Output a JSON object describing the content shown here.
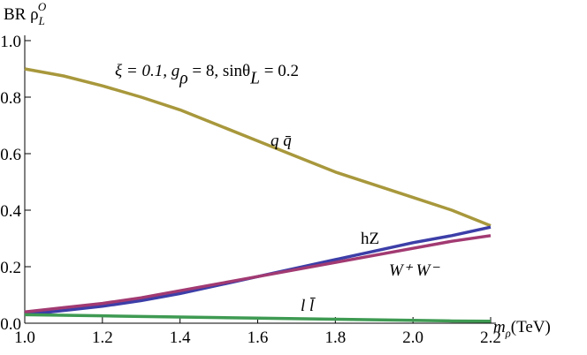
{
  "chart_data": {
    "type": "line",
    "ylabel": [
      "BR ρ",
      "L",
      "O"
    ],
    "xlabel": [
      "m",
      "ρ",
      "(TeV)"
    ],
    "annotation": [
      "ξ = 0.1,  g",
      "ρ",
      " = 8,  sinθ",
      "L",
      " = 0.2"
    ],
    "x": [
      1.0,
      1.1,
      1.2,
      1.3,
      1.4,
      1.5,
      1.6,
      1.7,
      1.8,
      1.9,
      2.0,
      2.1,
      2.2
    ],
    "series": [
      {
        "name": "q q̄",
        "color": "#a8983c",
        "values": [
          0.9,
          0.875,
          0.84,
          0.8,
          0.755,
          0.7,
          0.645,
          0.59,
          0.535,
          0.49,
          0.445,
          0.4,
          0.345
        ]
      },
      {
        "name": "hZ",
        "color": "#3c3ea8",
        "values": [
          0.03,
          0.045,
          0.06,
          0.08,
          0.105,
          0.135,
          0.165,
          0.195,
          0.225,
          0.255,
          0.285,
          0.31,
          0.34
        ]
      },
      {
        "name": "W⁺ W⁻",
        "color": "#a23a72",
        "values": [
          0.04,
          0.055,
          0.07,
          0.09,
          0.115,
          0.14,
          0.165,
          0.19,
          0.215,
          0.24,
          0.265,
          0.29,
          0.31
        ]
      },
      {
        "name": "l l̄",
        "color": "#3e9a52",
        "values": [
          0.03,
          0.028,
          0.026,
          0.024,
          0.022,
          0.02,
          0.018,
          0.016,
          0.014,
          0.012,
          0.01,
          0.008,
          0.007
        ]
      }
    ],
    "xlim": [
      1.0,
      2.2
    ],
    "xticks": [
      {
        "value": 1.0,
        "label": "1.0"
      },
      {
        "value": 1.2,
        "label": "1.2"
      },
      {
        "value": 1.4,
        "label": "1.4"
      },
      {
        "value": 1.6,
        "label": "1.6"
      },
      {
        "value": 1.8,
        "label": "1.8"
      },
      {
        "value": 2.0,
        "label": "2.0"
      },
      {
        "value": 2.2,
        "label": "2.2"
      }
    ],
    "ylim": [
      0.0,
      1.0
    ],
    "yticks": [
      {
        "value": 0.0,
        "label": "0.0"
      },
      {
        "value": 0.2,
        "label": "0.2"
      },
      {
        "value": 0.4,
        "label": "0.4"
      },
      {
        "value": 0.6,
        "label": "0.6"
      },
      {
        "value": 0.8,
        "label": "0.8"
      },
      {
        "value": 1.0,
        "label": "1.0"
      }
    ],
    "grid": false
  }
}
